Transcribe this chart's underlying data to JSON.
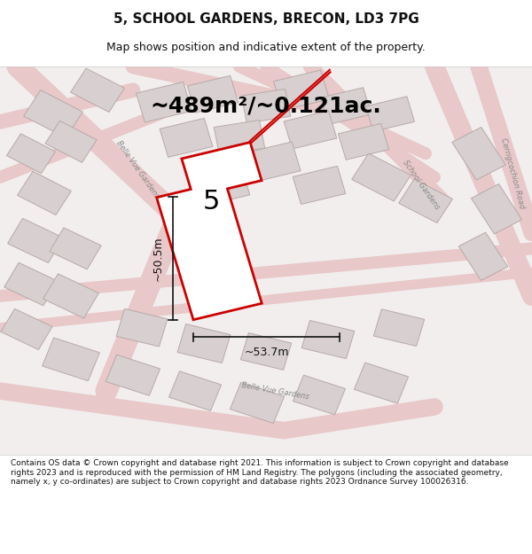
{
  "title": "5, SCHOOL GARDENS, BRECON, LD3 7PG",
  "subtitle": "Map shows position and indicative extent of the property.",
  "area_text": "~489m²/~0.121ac.",
  "dimension_h": "~50.5m",
  "dimension_w": "~53.7m",
  "property_label": "5",
  "footer": "Contains OS data © Crown copyright and database right 2021. This information is subject to Crown copyright and database rights 2023 and is reproduced with the permission of HM Land Registry. The polygons (including the associated geometry, namely x, y co-ordinates) are subject to Crown copyright and database rights 2023 Ordnance Survey 100026316.",
  "bg_color": "#f5f0f0",
  "map_bg": "#f8f4f4",
  "road_color": "#e8c8c8",
  "building_color": "#d8d0d0",
  "building_edge": "#c0b0b0",
  "property_color": "#cc0000",
  "dim_color": "#111111",
  "title_color": "#111111",
  "footer_color": "#111111"
}
